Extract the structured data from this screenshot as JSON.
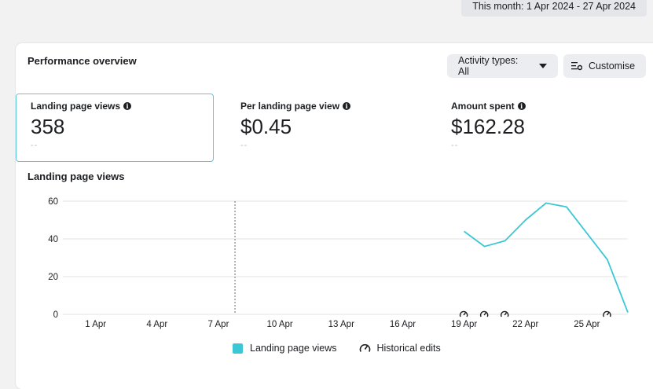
{
  "header": {
    "date_range": "This month: 1 Apr 2024 - 27 Apr 2024"
  },
  "overview": {
    "title": "Performance overview",
    "activity_button": "Activity types: All",
    "customise_button": "Customise"
  },
  "metrics": [
    {
      "label": "Landing page views",
      "value": "358",
      "compare": "--",
      "active": true
    },
    {
      "label": "Per landing page view",
      "value": "$0.45",
      "compare": "--",
      "active": false
    },
    {
      "label": "Amount spent",
      "value": "$162.28",
      "compare": "--",
      "active": false
    }
  ],
  "colors": {
    "series": "#3cc7d6",
    "grid": "#e3e3e3",
    "active_border": "#5cc9d6"
  },
  "chart_data": {
    "type": "line",
    "title": "Landing page views",
    "x_ticks": [
      "1 Apr",
      "4 Apr",
      "7 Apr",
      "10 Apr",
      "13 Apr",
      "16 Apr",
      "19 Apr",
      "22 Apr",
      "25 Apr"
    ],
    "y_ticks": [
      0,
      20,
      40,
      60
    ],
    "ylim": [
      0,
      60
    ],
    "xlim_days": [
      0,
      27
    ],
    "marker_day": 8,
    "series": [
      {
        "name": "Landing page views",
        "x": [
          19,
          20,
          21,
          22,
          23,
          24,
          25,
          26,
          27
        ],
        "values": [
          44,
          36,
          39,
          50,
          59,
          57,
          43,
          29,
          1
        ]
      }
    ],
    "historical_edit_days": [
      19,
      20,
      21,
      26
    ],
    "legend": [
      "Landing page views",
      "Historical edits"
    ],
    "grid": true
  }
}
